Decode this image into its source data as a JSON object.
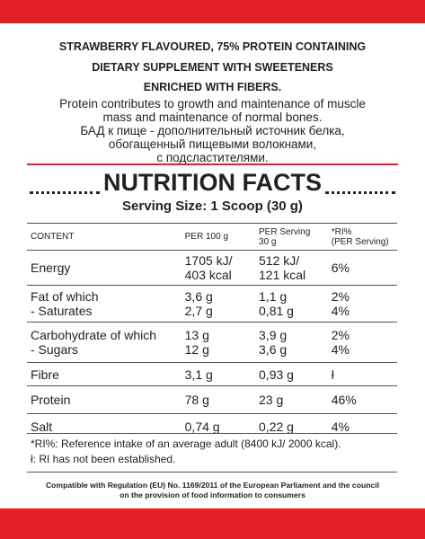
{
  "header": {
    "title_lines": [
      "STRAWBERRY FLAVOURED, 75% PROTEIN CONTAINING",
      "DIETARY SUPPLEMENT WITH SWEETENERS",
      "ENRICHED WITH FIBERS."
    ],
    "description_lines": [
      "Protein contributes to growth and maintenance of muscle",
      "mass and maintenance of normal bones.",
      "БАД к пище - дополнительный источник белка,",
      "обогащенный пищевыми волокнами,",
      "с подсластителями."
    ]
  },
  "facts": {
    "title": "NUTRITION FACTS",
    "serving": "Serving Size: 1 Scoop (30 g)"
  },
  "table": {
    "columns": [
      [
        "CONTENT"
      ],
      [
        "PER 100 g"
      ],
      [
        "PER Serving",
        "30 g"
      ],
      [
        "*RI%",
        "(PER Serving)"
      ]
    ],
    "rows": [
      [
        [
          "Energy"
        ],
        [
          "1705 kJ/",
          "403 kcal"
        ],
        [
          "512 kJ/",
          "121 kcal"
        ],
        [
          "6%"
        ]
      ],
      [
        [
          "Fat of which",
          "- Saturates"
        ],
        [
          "3,6 g",
          "2,7 g"
        ],
        [
          "1,1 g",
          "0,81 g"
        ],
        [
          "2%",
          "4%"
        ]
      ],
      [
        [
          "Carbohydrate of which",
          "- Sugars"
        ],
        [
          "13 g",
          "12 g"
        ],
        [
          "3,9 g",
          "3,6 g"
        ],
        [
          "2%",
          "4%"
        ]
      ],
      [
        [
          "Fibre"
        ],
        [
          "3,1 g"
        ],
        [
          "0,93 g"
        ],
        [
          "ł"
        ]
      ],
      [
        [
          "Protein"
        ],
        [
          "78 g"
        ],
        [
          "23 g"
        ],
        [
          "46%"
        ]
      ],
      [
        [
          "Salt"
        ],
        [
          "0,74 g"
        ],
        [
          "0,22 g"
        ],
        [
          "4%"
        ]
      ]
    ]
  },
  "footnotes": [
    "*RI%: Reference intake of an average adult (8400 kJ/ 2000 kcal).",
    "ł: RI has not been established."
  ],
  "compliance_lines": [
    "Compatible with Regulation (EU) No. 1169/2011 of the European Parliament and the council",
    "on the provision of food information to consumers"
  ]
}
